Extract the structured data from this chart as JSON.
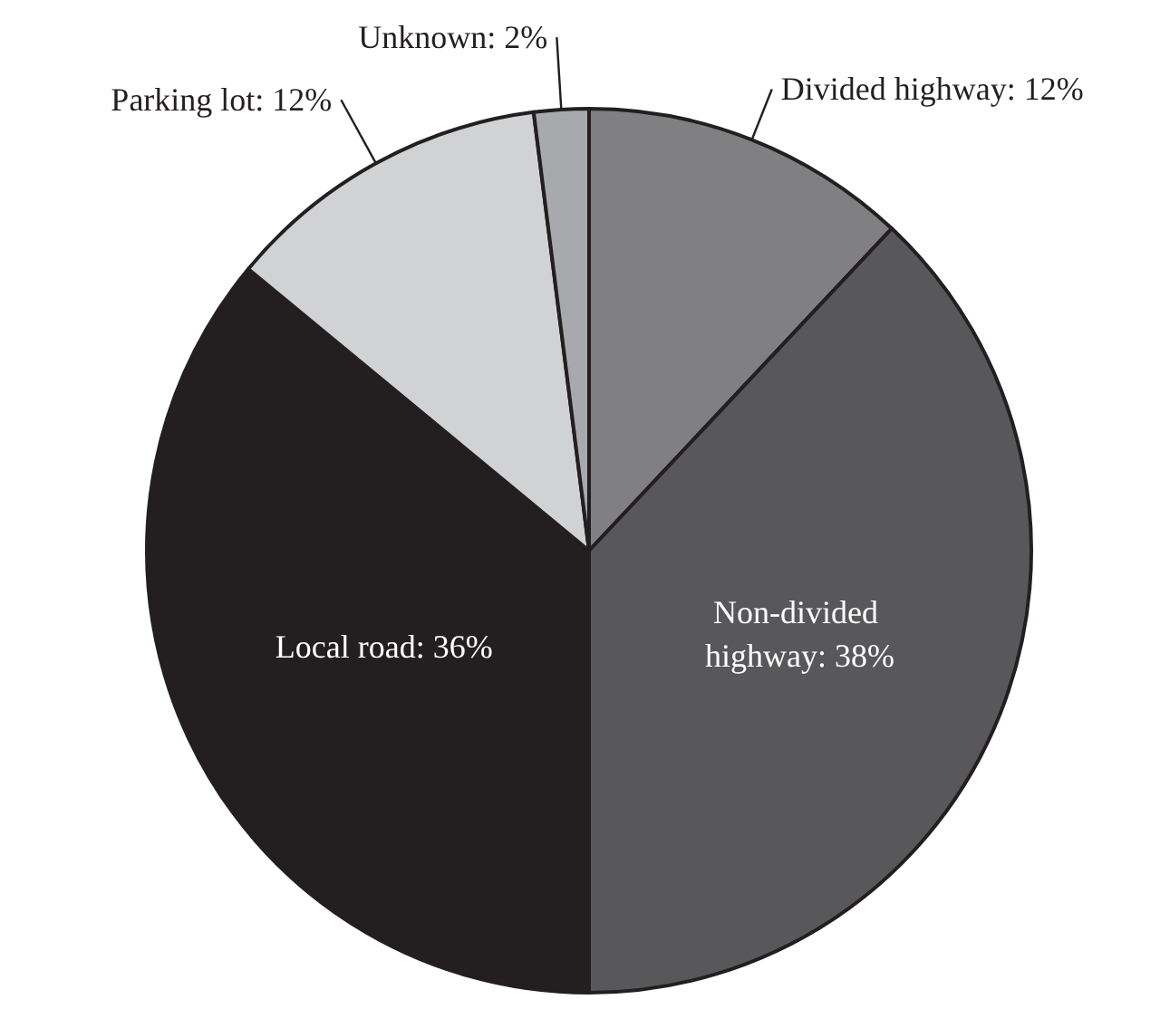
{
  "chart_data": {
    "type": "pie",
    "categories": [
      "Divided highway",
      "Non-divided highway",
      "Local road",
      "Parking lot",
      "Unknown"
    ],
    "values": [
      12,
      38,
      36,
      12,
      2
    ],
    "colors": [
      "#808083",
      "#58585a",
      "#231f20",
      "#d1d2d4",
      "#a7a9ac"
    ],
    "value_labels": [
      "12%",
      "38%",
      "36%",
      "12%",
      "2%"
    ]
  }
}
